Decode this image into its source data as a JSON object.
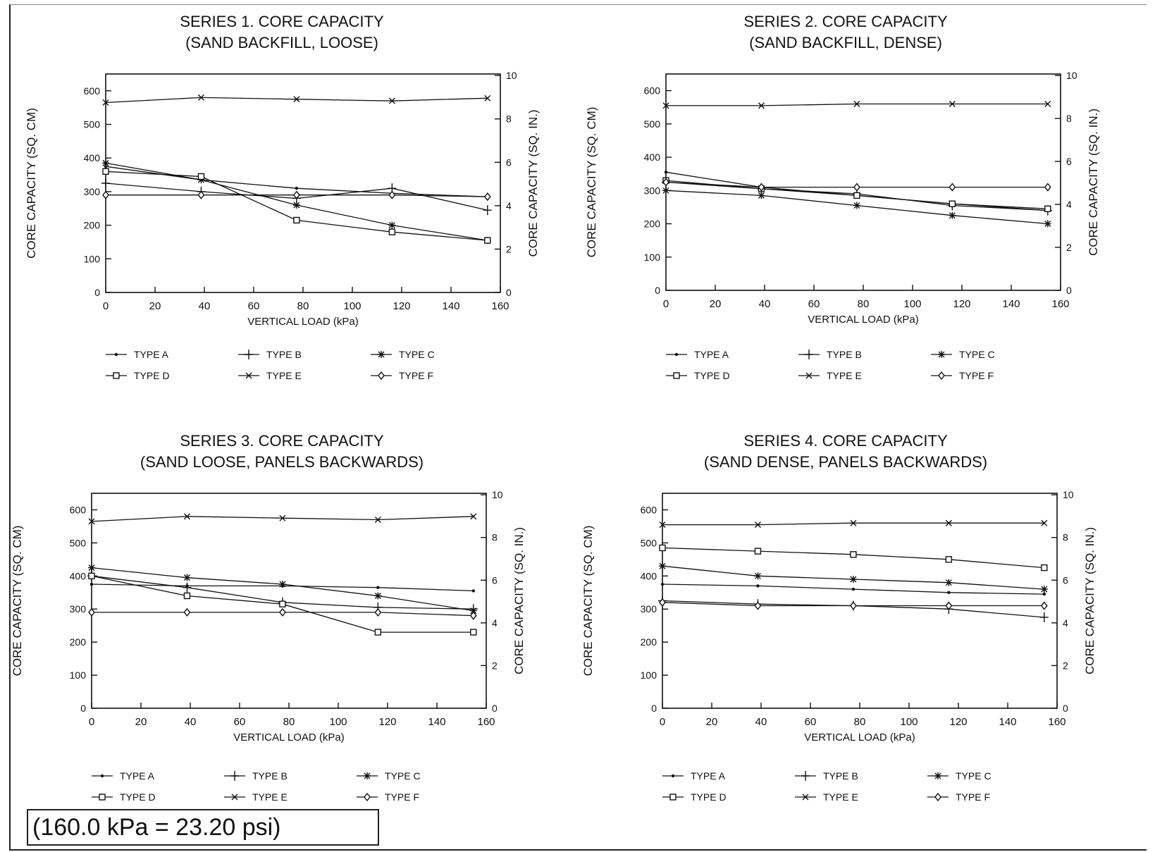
{
  "chart_data": [
    {
      "type": "line",
      "title": "SERIES 1. CORE CAPACITY",
      "subtitle": "(SAND BACKFILL, LOOSE)",
      "xlabel": "VERTICAL LOAD (kPa)",
      "ylabel": "CORE CAPACITY (SQ. CM)",
      "y2label": "CORE CAPACITY (SQ. IN.)",
      "xlim": [
        0,
        160
      ],
      "ylim": [
        0,
        650
      ],
      "y2lim": [
        0,
        10.07
      ],
      "xticks": [
        "0",
        "20",
        "40",
        "60",
        "80",
        "100",
        "120",
        "140",
        "160"
      ],
      "yticks": [
        "0",
        "100",
        "200",
        "300",
        "400",
        "500",
        "600"
      ],
      "y2ticks": [
        "0",
        "2",
        "4",
        "6",
        "8",
        "10"
      ],
      "x": [
        0,
        38.7,
        77.4,
        116.1,
        154.8
      ],
      "series": [
        {
          "name": "TYPE A",
          "marker": "dot",
          "values": [
            375,
            335,
            310,
            295,
            285
          ]
        },
        {
          "name": "TYPE B",
          "marker": "plus",
          "values": [
            325,
            300,
            280,
            310,
            245
          ]
        },
        {
          "name": "TYPE C",
          "marker": "star",
          "values": [
            385,
            335,
            260,
            200,
            155
          ]
        },
        {
          "name": "TYPE D",
          "marker": "square",
          "values": [
            360,
            345,
            215,
            180,
            155
          ]
        },
        {
          "name": "TYPE E",
          "marker": "x",
          "values": [
            565,
            580,
            575,
            570,
            578
          ]
        },
        {
          "name": "TYPE F",
          "marker": "diamond",
          "values": [
            290,
            290,
            290,
            290,
            285
          ]
        }
      ]
    },
    {
      "type": "line",
      "title": "SERIES 2. CORE CAPACITY",
      "subtitle": "(SAND BACKFILL, DENSE)",
      "xlabel": "VERTICAL LOAD (kPa)",
      "ylabel": "CORE CAPACITY (SQ. CM)",
      "y2label": "CORE CAPACITY (SQ. IN.)",
      "xlim": [
        0,
        160
      ],
      "ylim": [
        0,
        650
      ],
      "y2lim": [
        0,
        10.07
      ],
      "xticks": [
        "0",
        "20",
        "40",
        "60",
        "80",
        "100",
        "120",
        "140",
        "160"
      ],
      "yticks": [
        "0",
        "100",
        "200",
        "300",
        "400",
        "500",
        "600"
      ],
      "y2ticks": [
        "0",
        "2",
        "4",
        "6",
        "8",
        "10"
      ],
      "x": [
        0,
        38.7,
        77.4,
        116.1,
        154.8
      ],
      "series": [
        {
          "name": "TYPE A",
          "marker": "dot",
          "values": [
            355,
            310,
            285,
            260,
            240
          ]
        },
        {
          "name": "TYPE B",
          "marker": "plus",
          "values": [
            325,
            305,
            290,
            255,
            240
          ]
        },
        {
          "name": "TYPE C",
          "marker": "star",
          "values": [
            300,
            285,
            255,
            225,
            200
          ]
        },
        {
          "name": "TYPE D",
          "marker": "square",
          "values": [
            330,
            305,
            285,
            260,
            245
          ]
        },
        {
          "name": "TYPE E",
          "marker": "x",
          "values": [
            555,
            555,
            560,
            560,
            560
          ]
        },
        {
          "name": "TYPE F",
          "marker": "diamond",
          "values": [
            325,
            310,
            310,
            310,
            310
          ]
        }
      ]
    },
    {
      "type": "line",
      "title": "SERIES 3. CORE CAPACITY",
      "subtitle": "(SAND LOOSE, PANELS BACKWARDS)",
      "xlabel": "VERTICAL LOAD (kPa)",
      "ylabel": "CORE CAPACITY (SQ. CM)",
      "y2label": "CORE CAPACITY (SQ. IN.)",
      "xlim": [
        0,
        160
      ],
      "ylim": [
        0,
        650
      ],
      "y2lim": [
        0,
        10.07
      ],
      "xticks": [
        "0",
        "20",
        "40",
        "60",
        "80",
        "100",
        "120",
        "140",
        "160"
      ],
      "yticks": [
        "0",
        "100",
        "200",
        "300",
        "400",
        "500",
        "600"
      ],
      "y2ticks": [
        "0",
        "2",
        "4",
        "6",
        "8",
        "10"
      ],
      "x": [
        0,
        38.7,
        77.4,
        116.1,
        154.8
      ],
      "series": [
        {
          "name": "TYPE A",
          "marker": "dot",
          "values": [
            375,
            370,
            370,
            365,
            355
          ]
        },
        {
          "name": "TYPE B",
          "marker": "plus",
          "values": [
            400,
            365,
            320,
            305,
            300
          ]
        },
        {
          "name": "TYPE C",
          "marker": "star",
          "values": [
            425,
            395,
            375,
            340,
            295
          ]
        },
        {
          "name": "TYPE D",
          "marker": "square",
          "values": [
            400,
            340,
            315,
            230,
            230
          ]
        },
        {
          "name": "TYPE E",
          "marker": "x",
          "values": [
            565,
            580,
            575,
            570,
            580
          ]
        },
        {
          "name": "TYPE F",
          "marker": "diamond",
          "values": [
            290,
            290,
            290,
            290,
            280
          ]
        }
      ]
    },
    {
      "type": "line",
      "title": "SERIES 4. CORE CAPACITY",
      "subtitle": "(SAND DENSE, PANELS BACKWARDS)",
      "xlabel": "VERTICAL LOAD (kPa)",
      "ylabel": "CORE CAPACITY (SQ. CM)",
      "y2label": "CORE CAPACITY (SQ. IN.)",
      "xlim": [
        0,
        160
      ],
      "ylim": [
        0,
        650
      ],
      "y2lim": [
        0,
        10.07
      ],
      "xticks": [
        "0",
        "20",
        "40",
        "60",
        "80",
        "100",
        "120",
        "140",
        "160"
      ],
      "yticks": [
        "0",
        "100",
        "200",
        "300",
        "400",
        "500",
        "600"
      ],
      "y2ticks": [
        "0",
        "2",
        "4",
        "6",
        "8",
        "10"
      ],
      "x": [
        0,
        38.7,
        77.4,
        116.1,
        154.8
      ],
      "series": [
        {
          "name": "TYPE A",
          "marker": "dot",
          "values": [
            375,
            370,
            360,
            350,
            345
          ]
        },
        {
          "name": "TYPE B",
          "marker": "plus",
          "values": [
            325,
            315,
            310,
            300,
            275
          ]
        },
        {
          "name": "TYPE C",
          "marker": "star",
          "values": [
            430,
            400,
            390,
            380,
            360
          ]
        },
        {
          "name": "TYPE D",
          "marker": "square",
          "values": [
            485,
            475,
            465,
            450,
            425
          ]
        },
        {
          "name": "TYPE E",
          "marker": "x",
          "values": [
            555,
            555,
            560,
            560,
            560
          ]
        },
        {
          "name": "TYPE F",
          "marker": "diamond",
          "values": [
            320,
            310,
            310,
            310,
            310
          ]
        }
      ]
    }
  ],
  "note": "(160.0 kPa = 23.20 psi)"
}
